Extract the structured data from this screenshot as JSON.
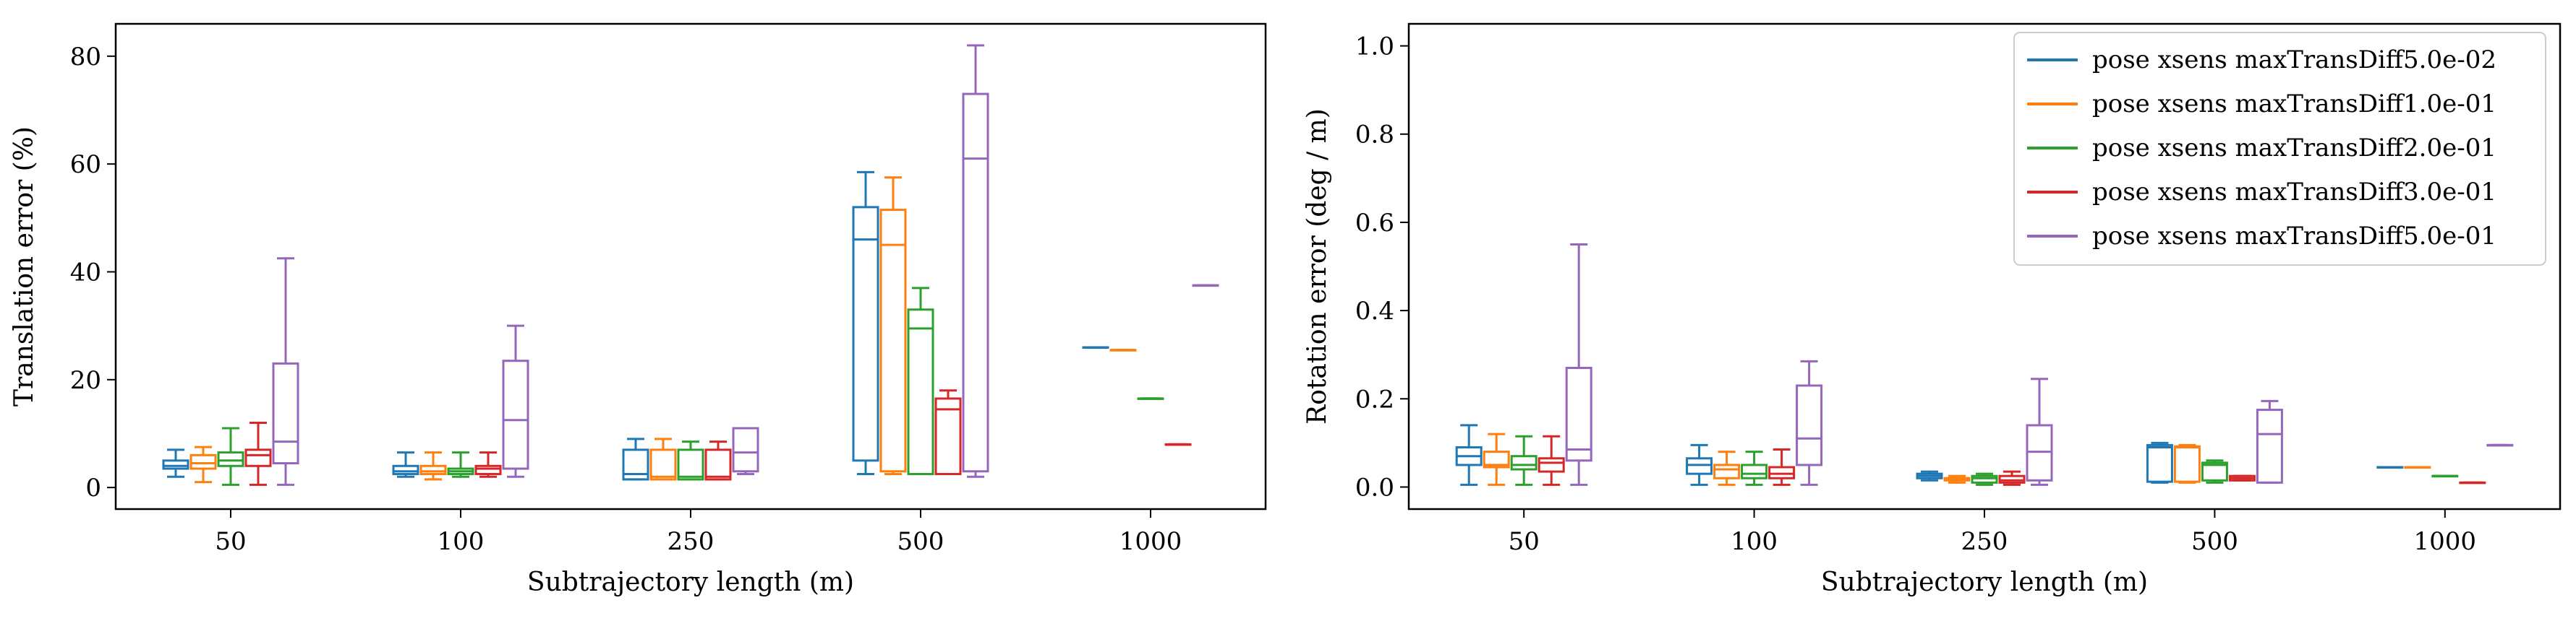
{
  "colors": [
    "#1f77b4",
    "#ff7f0e",
    "#2ca02c",
    "#d62728",
    "#9467bd"
  ],
  "series_names": [
    "pose xsens maxTransDiff5.0e-02",
    "pose xsens maxTransDiff1.0e-01",
    "pose xsens maxTransDiff2.0e-01",
    "pose xsens maxTransDiff3.0e-01",
    "pose xsens maxTransDiff5.0e-01"
  ],
  "chart_data": [
    {
      "type": "box",
      "xlabel": "Subtrajectory length (m)",
      "ylabel": "Translation error (%)",
      "ylim": [
        -4,
        86
      ],
      "yticks": [
        0,
        20,
        40,
        60,
        80
      ],
      "categories": [
        "50",
        "100",
        "250",
        "500",
        "1000"
      ],
      "grid": false,
      "series": [
        {
          "boxes": [
            [
              2,
              3.5,
              4,
              5,
              7
            ],
            [
              2,
              2.5,
              3,
              4,
              6.5
            ],
            [
              1.5,
              1.5,
              2.5,
              7,
              9
            ],
            [
              2.5,
              5,
              46,
              52,
              58.5
            ],
            [
              26,
              26,
              26,
              26,
              26
            ]
          ]
        },
        {
          "boxes": [
            [
              1,
              3.5,
              4.5,
              6,
              7.5
            ],
            [
              1.5,
              2.5,
              3,
              4,
              6.5
            ],
            [
              1.5,
              1.5,
              2,
              7,
              9
            ],
            [
              2.5,
              3,
              45,
              51.5,
              57.5
            ],
            [
              25.5,
              25.5,
              25.5,
              25.5,
              25.5
            ]
          ]
        },
        {
          "boxes": [
            [
              0.5,
              4,
              5,
              6.5,
              11
            ],
            [
              2,
              2.5,
              3,
              3.5,
              6.5
            ],
            [
              1.5,
              1.5,
              2,
              7,
              8.5
            ],
            [
              2.5,
              2.5,
              29.5,
              33,
              37
            ],
            [
              16.5,
              16.5,
              16.5,
              16.5,
              16.5
            ]
          ]
        },
        {
          "boxes": [
            [
              0.5,
              4,
              6,
              7,
              12
            ],
            [
              2,
              2.5,
              3.5,
              4,
              6.5
            ],
            [
              1.5,
              1.5,
              2,
              7,
              8.5
            ],
            [
              2.5,
              2.5,
              14.5,
              16.5,
              18
            ],
            [
              8,
              8,
              8,
              8,
              8
            ]
          ]
        },
        {
          "boxes": [
            [
              0.5,
              4.5,
              8.5,
              23,
              42.5
            ],
            [
              2,
              3.5,
              12.5,
              23.5,
              30
            ],
            [
              2.5,
              3,
              6.5,
              11,
              11
            ],
            [
              2,
              3,
              61,
              73,
              82
            ],
            [
              37.5,
              37.5,
              37.5,
              37.5,
              37.5
            ]
          ]
        }
      ]
    },
    {
      "type": "box",
      "xlabel": "Subtrajectory length (m)",
      "ylabel": "Rotation error (deg / m)",
      "ylim": [
        -0.05,
        1.05
      ],
      "yticks": [
        0.0,
        0.2,
        0.4,
        0.6,
        0.8,
        1.0
      ],
      "categories": [
        "50",
        "100",
        "250",
        "500",
        "1000"
      ],
      "grid": false,
      "legend": "top-right",
      "series": [
        {
          "boxes": [
            [
              0.005,
              0.05,
              0.07,
              0.09,
              0.14
            ],
            [
              0.005,
              0.03,
              0.05,
              0.065,
              0.095
            ],
            [
              0.015,
              0.02,
              0.025,
              0.03,
              0.035
            ],
            [
              0.01,
              0.012,
              0.09,
              0.095,
              0.1
            ],
            [
              0.045,
              0.045,
              0.045,
              0.045,
              0.045
            ]
          ]
        },
        {
          "boxes": [
            [
              0.005,
              0.045,
              0.05,
              0.08,
              0.12
            ],
            [
              0.005,
              0.02,
              0.04,
              0.05,
              0.08
            ],
            [
              0.01,
              0.015,
              0.02,
              0.02,
              0.025
            ],
            [
              0.01,
              0.012,
              0.09,
              0.092,
              0.095
            ],
            [
              0.045,
              0.045,
              0.045,
              0.045,
              0.045
            ]
          ]
        },
        {
          "boxes": [
            [
              0.005,
              0.04,
              0.05,
              0.07,
              0.115
            ],
            [
              0.005,
              0.02,
              0.03,
              0.05,
              0.08
            ],
            [
              0.005,
              0.01,
              0.02,
              0.025,
              0.03
            ],
            [
              0.01,
              0.015,
              0.05,
              0.055,
              0.06
            ],
            [
              0.025,
              0.025,
              0.025,
              0.025,
              0.025
            ]
          ]
        },
        {
          "boxes": [
            [
              0.005,
              0.035,
              0.055,
              0.065,
              0.115
            ],
            [
              0.005,
              0.02,
              0.03,
              0.045,
              0.085
            ],
            [
              0.005,
              0.01,
              0.015,
              0.025,
              0.035
            ],
            [
              0.015,
              0.015,
              0.02,
              0.025,
              0.025
            ],
            [
              0.01,
              0.01,
              0.01,
              0.01,
              0.01
            ]
          ]
        },
        {
          "boxes": [
            [
              0.005,
              0.06,
              0.085,
              0.27,
              0.55
            ],
            [
              0.005,
              0.05,
              0.11,
              0.23,
              0.285
            ],
            [
              0.005,
              0.015,
              0.08,
              0.14,
              0.245
            ],
            [
              0.01,
              0.01,
              0.12,
              0.175,
              0.195
            ],
            [
              0.095,
              0.095,
              0.095,
              0.095,
              0.095
            ]
          ]
        }
      ]
    }
  ]
}
